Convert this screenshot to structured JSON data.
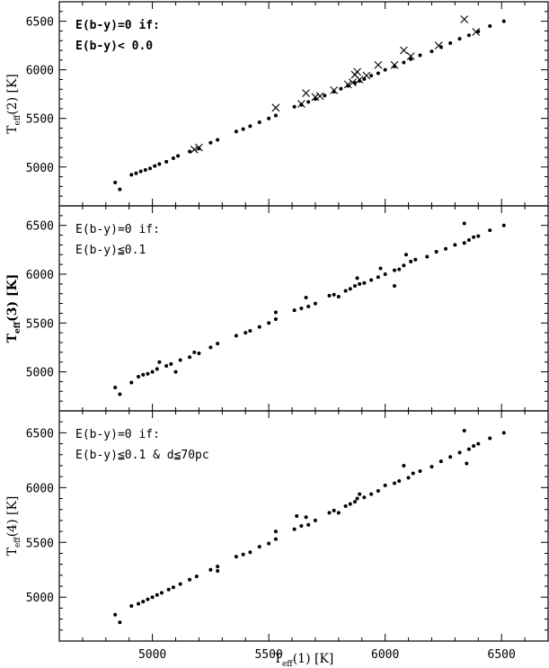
{
  "chart_data": [
    {
      "type": "scatter",
      "ylabel": {
        "main": "T",
        "sub": "eff",
        "rest": "(2) [K]"
      },
      "annotation": [
        "E(b-y)=0 if:",
        "E(b-y)< 0.0"
      ],
      "xlim": [
        4600,
        6700
      ],
      "ylim": [
        4600,
        6700
      ],
      "xticks": [
        5000,
        5500,
        6000,
        6500
      ],
      "yticks": [
        5000,
        5500,
        6000,
        6500
      ],
      "series": [
        {
          "marker": "dot",
          "points": [
            [
              4840,
              4840
            ],
            [
              4860,
              4770
            ],
            [
              4910,
              4920
            ],
            [
              4930,
              4935
            ],
            [
              4950,
              4955
            ],
            [
              4970,
              4970
            ],
            [
              4990,
              4985
            ],
            [
              5010,
              5010
            ],
            [
              5030,
              5030
            ],
            [
              5060,
              5055
            ],
            [
              5090,
              5090
            ],
            [
              5110,
              5115
            ],
            [
              5160,
              5160
            ],
            [
              5200,
              5190
            ],
            [
              5250,
              5250
            ],
            [
              5280,
              5280
            ],
            [
              5360,
              5365
            ],
            [
              5390,
              5390
            ],
            [
              5420,
              5420
            ],
            [
              5460,
              5460
            ],
            [
              5500,
              5500
            ],
            [
              5530,
              5530
            ],
            [
              5610,
              5620
            ],
            [
              5640,
              5640
            ],
            [
              5670,
              5670
            ],
            [
              5700,
              5700
            ],
            [
              5740,
              5735
            ],
            [
              5780,
              5775
            ],
            [
              5810,
              5805
            ],
            [
              5840,
              5835
            ],
            [
              5870,
              5865
            ],
            [
              5890,
              5885
            ],
            [
              5910,
              5905
            ],
            [
              5940,
              5940
            ],
            [
              5970,
              5965
            ],
            [
              6000,
              6000
            ],
            [
              6040,
              6035
            ],
            [
              6080,
              6075
            ],
            [
              6110,
              6110
            ],
            [
              6150,
              6150
            ],
            [
              6200,
              6190
            ],
            [
              6240,
              6235
            ],
            [
              6280,
              6275
            ],
            [
              6320,
              6320
            ],
            [
              6360,
              6355
            ],
            [
              6400,
              6395
            ],
            [
              6450,
              6450
            ],
            [
              6510,
              6500
            ]
          ]
        },
        {
          "marker": "cross",
          "points": [
            [
              5180,
              5180
            ],
            [
              5200,
              5200
            ],
            [
              5530,
              5610
            ],
            [
              5640,
              5650
            ],
            [
              5660,
              5760
            ],
            [
              5700,
              5720
            ],
            [
              5720,
              5730
            ],
            [
              5780,
              5790
            ],
            [
              5840,
              5850
            ],
            [
              5860,
              5870
            ],
            [
              5870,
              5950
            ],
            [
              5880,
              5980
            ],
            [
              5890,
              5900
            ],
            [
              5920,
              5940
            ],
            [
              5970,
              6050
            ],
            [
              6040,
              6050
            ],
            [
              6080,
              6200
            ],
            [
              6110,
              6140
            ],
            [
              6230,
              6250
            ],
            [
              6340,
              6520
            ],
            [
              6390,
              6390
            ]
          ]
        }
      ]
    },
    {
      "type": "scatter",
      "ylabel": {
        "main": "T",
        "sub": "eff",
        "rest": "(3) [K]"
      },
      "annotation": [
        "E(b-y)=0 if:",
        "E(b-y)≦0.1"
      ],
      "xlim": [
        4600,
        6700
      ],
      "ylim": [
        4600,
        6700
      ],
      "xticks": [
        5000,
        5500,
        6000,
        6500
      ],
      "yticks": [
        5000,
        5500,
        6000,
        6500
      ],
      "series": [
        {
          "marker": "dot",
          "points": [
            [
              4840,
              4840
            ],
            [
              4860,
              4770
            ],
            [
              4910,
              4890
            ],
            [
              4940,
              4950
            ],
            [
              4960,
              4970
            ],
            [
              4980,
              4980
            ],
            [
              5000,
              5000
            ],
            [
              5020,
              5030
            ],
            [
              5030,
              5100
            ],
            [
              5060,
              5060
            ],
            [
              5080,
              5080
            ],
            [
              5100,
              5000
            ],
            [
              5120,
              5120
            ],
            [
              5160,
              5150
            ],
            [
              5180,
              5200
            ],
            [
              5200,
              5190
            ],
            [
              5250,
              5250
            ],
            [
              5280,
              5290
            ],
            [
              5360,
              5370
            ],
            [
              5400,
              5400
            ],
            [
              5420,
              5420
            ],
            [
              5460,
              5460
            ],
            [
              5500,
              5500
            ],
            [
              5530,
              5540
            ],
            [
              5530,
              5610
            ],
            [
              5610,
              5630
            ],
            [
              5640,
              5650
            ],
            [
              5660,
              5760
            ],
            [
              5670,
              5670
            ],
            [
              5700,
              5700
            ],
            [
              5760,
              5780
            ],
            [
              5780,
              5790
            ],
            [
              5800,
              5770
            ],
            [
              5830,
              5830
            ],
            [
              5850,
              5850
            ],
            [
              5870,
              5880
            ],
            [
              5880,
              5960
            ],
            [
              5890,
              5900
            ],
            [
              5910,
              5910
            ],
            [
              5940,
              5940
            ],
            [
              5970,
              5970
            ],
            [
              5980,
              6060
            ],
            [
              6000,
              6000
            ],
            [
              6040,
              6040
            ],
            [
              6040,
              5880
            ],
            [
              6060,
              6050
            ],
            [
              6080,
              6090
            ],
            [
              6090,
              6200
            ],
            [
              6110,
              6130
            ],
            [
              6130,
              6150
            ],
            [
              6180,
              6180
            ],
            [
              6220,
              6230
            ],
            [
              6260,
              6260
            ],
            [
              6300,
              6300
            ],
            [
              6340,
              6320
            ],
            [
              6340,
              6520
            ],
            [
              6360,
              6350
            ],
            [
              6380,
              6380
            ],
            [
              6400,
              6390
            ],
            [
              6450,
              6450
            ],
            [
              6510,
              6500
            ]
          ]
        }
      ]
    },
    {
      "type": "scatter",
      "ylabel": {
        "main": "T",
        "sub": "eff",
        "rest": "(4) [K]"
      },
      "annotation": [
        "E(b-y)=0 if:",
        "E(b-y)≦0.1 & d≦70pc"
      ],
      "xlim": [
        4600,
        6700
      ],
      "ylim": [
        4600,
        6700
      ],
      "xticks": [
        5000,
        5500,
        6000,
        6500
      ],
      "yticks": [
        5000,
        5500,
        6000,
        6500
      ],
      "series": [
        {
          "marker": "dot",
          "points": [
            [
              4840,
              4840
            ],
            [
              4860,
              4770
            ],
            [
              4910,
              4920
            ],
            [
              4940,
              4940
            ],
            [
              4960,
              4960
            ],
            [
              4980,
              4980
            ],
            [
              5000,
              5000
            ],
            [
              5020,
              5020
            ],
            [
              5040,
              5040
            ],
            [
              5070,
              5070
            ],
            [
              5090,
              5090
            ],
            [
              5120,
              5120
            ],
            [
              5160,
              5160
            ],
            [
              5190,
              5190
            ],
            [
              5250,
              5250
            ],
            [
              5280,
              5280
            ],
            [
              5280,
              5240
            ],
            [
              5360,
              5370
            ],
            [
              5390,
              5390
            ],
            [
              5420,
              5410
            ],
            [
              5460,
              5460
            ],
            [
              5500,
              5490
            ],
            [
              5530,
              5530
            ],
            [
              5530,
              5600
            ],
            [
              5610,
              5620
            ],
            [
              5620,
              5740
            ],
            [
              5640,
              5650
            ],
            [
              5660,
              5730
            ],
            [
              5670,
              5660
            ],
            [
              5700,
              5700
            ],
            [
              5760,
              5770
            ],
            [
              5780,
              5790
            ],
            [
              5800,
              5770
            ],
            [
              5830,
              5830
            ],
            [
              5850,
              5850
            ],
            [
              5870,
              5870
            ],
            [
              5880,
              5900
            ],
            [
              5890,
              5940
            ],
            [
              5910,
              5910
            ],
            [
              5940,
              5940
            ],
            [
              5970,
              5970
            ],
            [
              6000,
              6020
            ],
            [
              6040,
              6040
            ],
            [
              6060,
              6060
            ],
            [
              6080,
              6200
            ],
            [
              6100,
              6090
            ],
            [
              6120,
              6130
            ],
            [
              6150,
              6150
            ],
            [
              6200,
              6190
            ],
            [
              6240,
              6240
            ],
            [
              6280,
              6280
            ],
            [
              6320,
              6320
            ],
            [
              6340,
              6520
            ],
            [
              6350,
              6220
            ],
            [
              6360,
              6350
            ],
            [
              6380,
              6380
            ],
            [
              6400,
              6400
            ],
            [
              6450,
              6450
            ],
            [
              6510,
              6500
            ]
          ]
        }
      ]
    }
  ],
  "xlabel": {
    "main": "T",
    "sub": "eff",
    "rest": "(1) [K]"
  }
}
